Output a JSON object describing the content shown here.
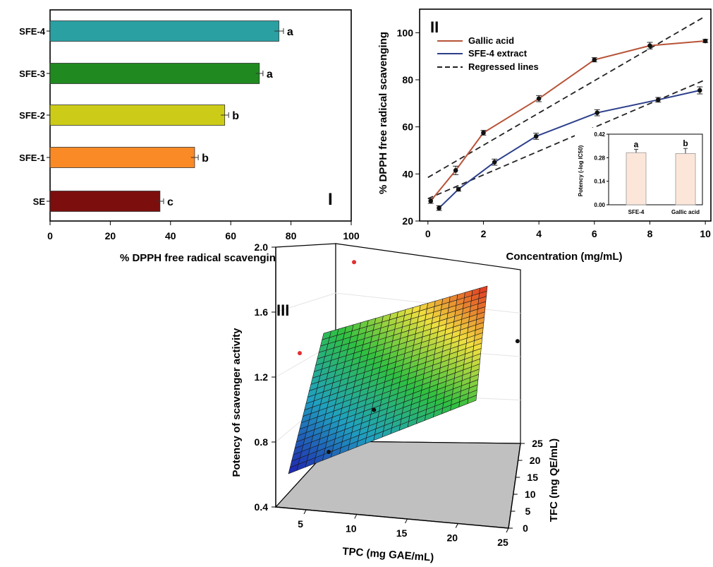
{
  "panels": {
    "I": "I",
    "II": "II",
    "III": "III"
  },
  "chart_data": [
    {
      "type": "bar",
      "orientation": "horizontal",
      "categories": [
        "SFE-4",
        "SFE-3",
        "SFE-2",
        "SFE-1",
        "SE"
      ],
      "values": [
        76,
        69.5,
        58,
        48,
        36.5
      ],
      "errors": [
        1.5,
        1.2,
        1.3,
        1.2,
        1.2
      ],
      "letters": [
        "a",
        "a",
        "b",
        "b",
        "c"
      ],
      "colors": [
        "#2aa0a2",
        "#208a20",
        "#cccc18",
        "#fa8a26",
        "#7c0e0e"
      ],
      "xlabel": "% DPPH free radical scavenging",
      "ylabel": "",
      "xlim": [
        0,
        100
      ],
      "xticks": [
        "0",
        "20",
        "40",
        "60",
        "80",
        "100"
      ],
      "grid": false
    },
    {
      "type": "line",
      "xlabel": "Concentration (mg/mL)",
      "ylabel": "% DPPH free radical scavenging",
      "xlim": [
        -0.3,
        10.2
      ],
      "ylim": [
        20,
        110
      ],
      "xticks": [
        "0",
        "2",
        "4",
        "6",
        "8",
        "10"
      ],
      "yticks": [
        "20",
        "40",
        "60",
        "80",
        "100"
      ],
      "legend_position": "top-left",
      "series": [
        {
          "name": "Gallic acid",
          "color": "#b85438",
          "x": [
            0.1,
            1,
            2,
            4,
            6,
            8,
            10
          ],
          "y": [
            28.5,
            41.5,
            57.5,
            72,
            88.5,
            94.5,
            96.5
          ],
          "err": [
            1,
            1.8,
            1,
            1.3,
            0.9,
            1.4,
            0.7
          ]
        },
        {
          "name": "SFE-4 extract",
          "color": "#2c3f8a",
          "x": [
            0.4,
            1.1,
            2.4,
            3.9,
            6.1,
            8.3,
            9.8
          ],
          "y": [
            25.5,
            33.5,
            45,
            56,
            66,
            71.5,
            75.5
          ],
          "err": [
            1,
            0.8,
            1.3,
            1.3,
            1.3,
            1,
            1.5
          ]
        },
        {
          "name": "Regressed lines",
          "color": "#222222",
          "style": "dashed",
          "lines": [
            [
              [
                0,
                38.5
              ],
              [
                10,
                107
              ]
            ],
            [
              [
                0,
                29.5
              ],
              [
                10,
                80
              ]
            ]
          ]
        }
      ],
      "inset": {
        "type": "bar",
        "categories": [
          "SFE-4",
          "Gallic acid"
        ],
        "values": [
          0.31,
          0.305
        ],
        "errors": [
          0.02,
          0.03
        ],
        "letters": [
          "a",
          "b"
        ],
        "ylabel": "Potency (-log IC50)",
        "ylim": [
          0,
          0.42
        ],
        "yticks": [
          "0.00",
          "0.14",
          "0.28",
          "0.42"
        ],
        "bar_color": "#fce6da"
      }
    },
    {
      "type": "surface3d",
      "xlabel": "TPC (mg GAE/mL)",
      "ylabel": "TFC (mg QE/mL)",
      "zlabel": "Potency of scavenger activity",
      "xticks": [
        "5",
        "10",
        "15",
        "20",
        "25"
      ],
      "yticks": [
        "0",
        "5",
        "10",
        "15",
        "20",
        "25"
      ],
      "zticks": [
        "0.4",
        "0.8",
        "1.2",
        "1.6",
        "2.0"
      ],
      "zlim": [
        0.4,
        2.0
      ],
      "surface_range": [
        0.7,
        2.0
      ],
      "colormap": [
        "#2020b0",
        "#20a0c0",
        "#30c040",
        "#f0e040",
        "#e03020"
      ],
      "points": [
        {
          "tpc": 7,
          "tfc": 1,
          "z": 0.78
        },
        {
          "tpc": 11,
          "tfc": 3,
          "z": 1.05
        },
        {
          "tpc": 24,
          "tfc": 8,
          "z": 1.5
        },
        {
          "tpc": 5,
          "tfc": 20,
          "z": 1.7
        },
        {
          "tpc": 2,
          "tfc": 10,
          "z": 1.25
        }
      ]
    }
  ]
}
